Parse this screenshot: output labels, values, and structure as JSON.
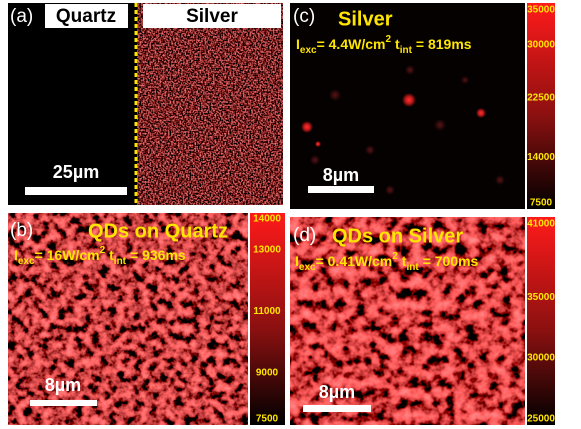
{
  "panels": [
    {
      "label": "(a)",
      "headers": [
        "Quartz",
        "Silver"
      ],
      "scale_bar": "25µm"
    },
    {
      "label": "(c)",
      "title": "Silver",
      "excitation": {
        "intensity_symbol": "I",
        "intensity_sub": "exc",
        "intensity": "= 4.4W/cm",
        "intensity_sup": "2",
        "time_symbol": "t",
        "time_sub": "int",
        "time": "= 819ms"
      },
      "scale_bar": "8µm",
      "colorbar_ticks": [
        35000,
        30000,
        22500,
        14000,
        7500
      ]
    },
    {
      "label": "(b)",
      "title": "QDs on Quartz",
      "excitation": {
        "intensity_symbol": "I",
        "intensity_sub": "exc",
        "intensity": "= 16W/cm",
        "intensity_sup": "2",
        "time_symbol": "t",
        "time_sub": "int",
        "time": "= 936ms"
      },
      "scale_bar": "8µm",
      "colorbar_ticks": [
        14000,
        13000,
        11000,
        9000,
        7500
      ]
    },
    {
      "label": "(d)",
      "title": "QDs on Silver",
      "excitation": {
        "intensity_symbol": "I",
        "intensity_sub": "exc",
        "intensity": "= 0.41W/cm",
        "intensity_sup": "2",
        "time_symbol": "t",
        "time_sub": "int",
        "time": "= 700ms"
      },
      "scale_bar": "8µm",
      "colorbar_ticks": [
        41000,
        35000,
        30000,
        25000
      ]
    }
  ]
}
